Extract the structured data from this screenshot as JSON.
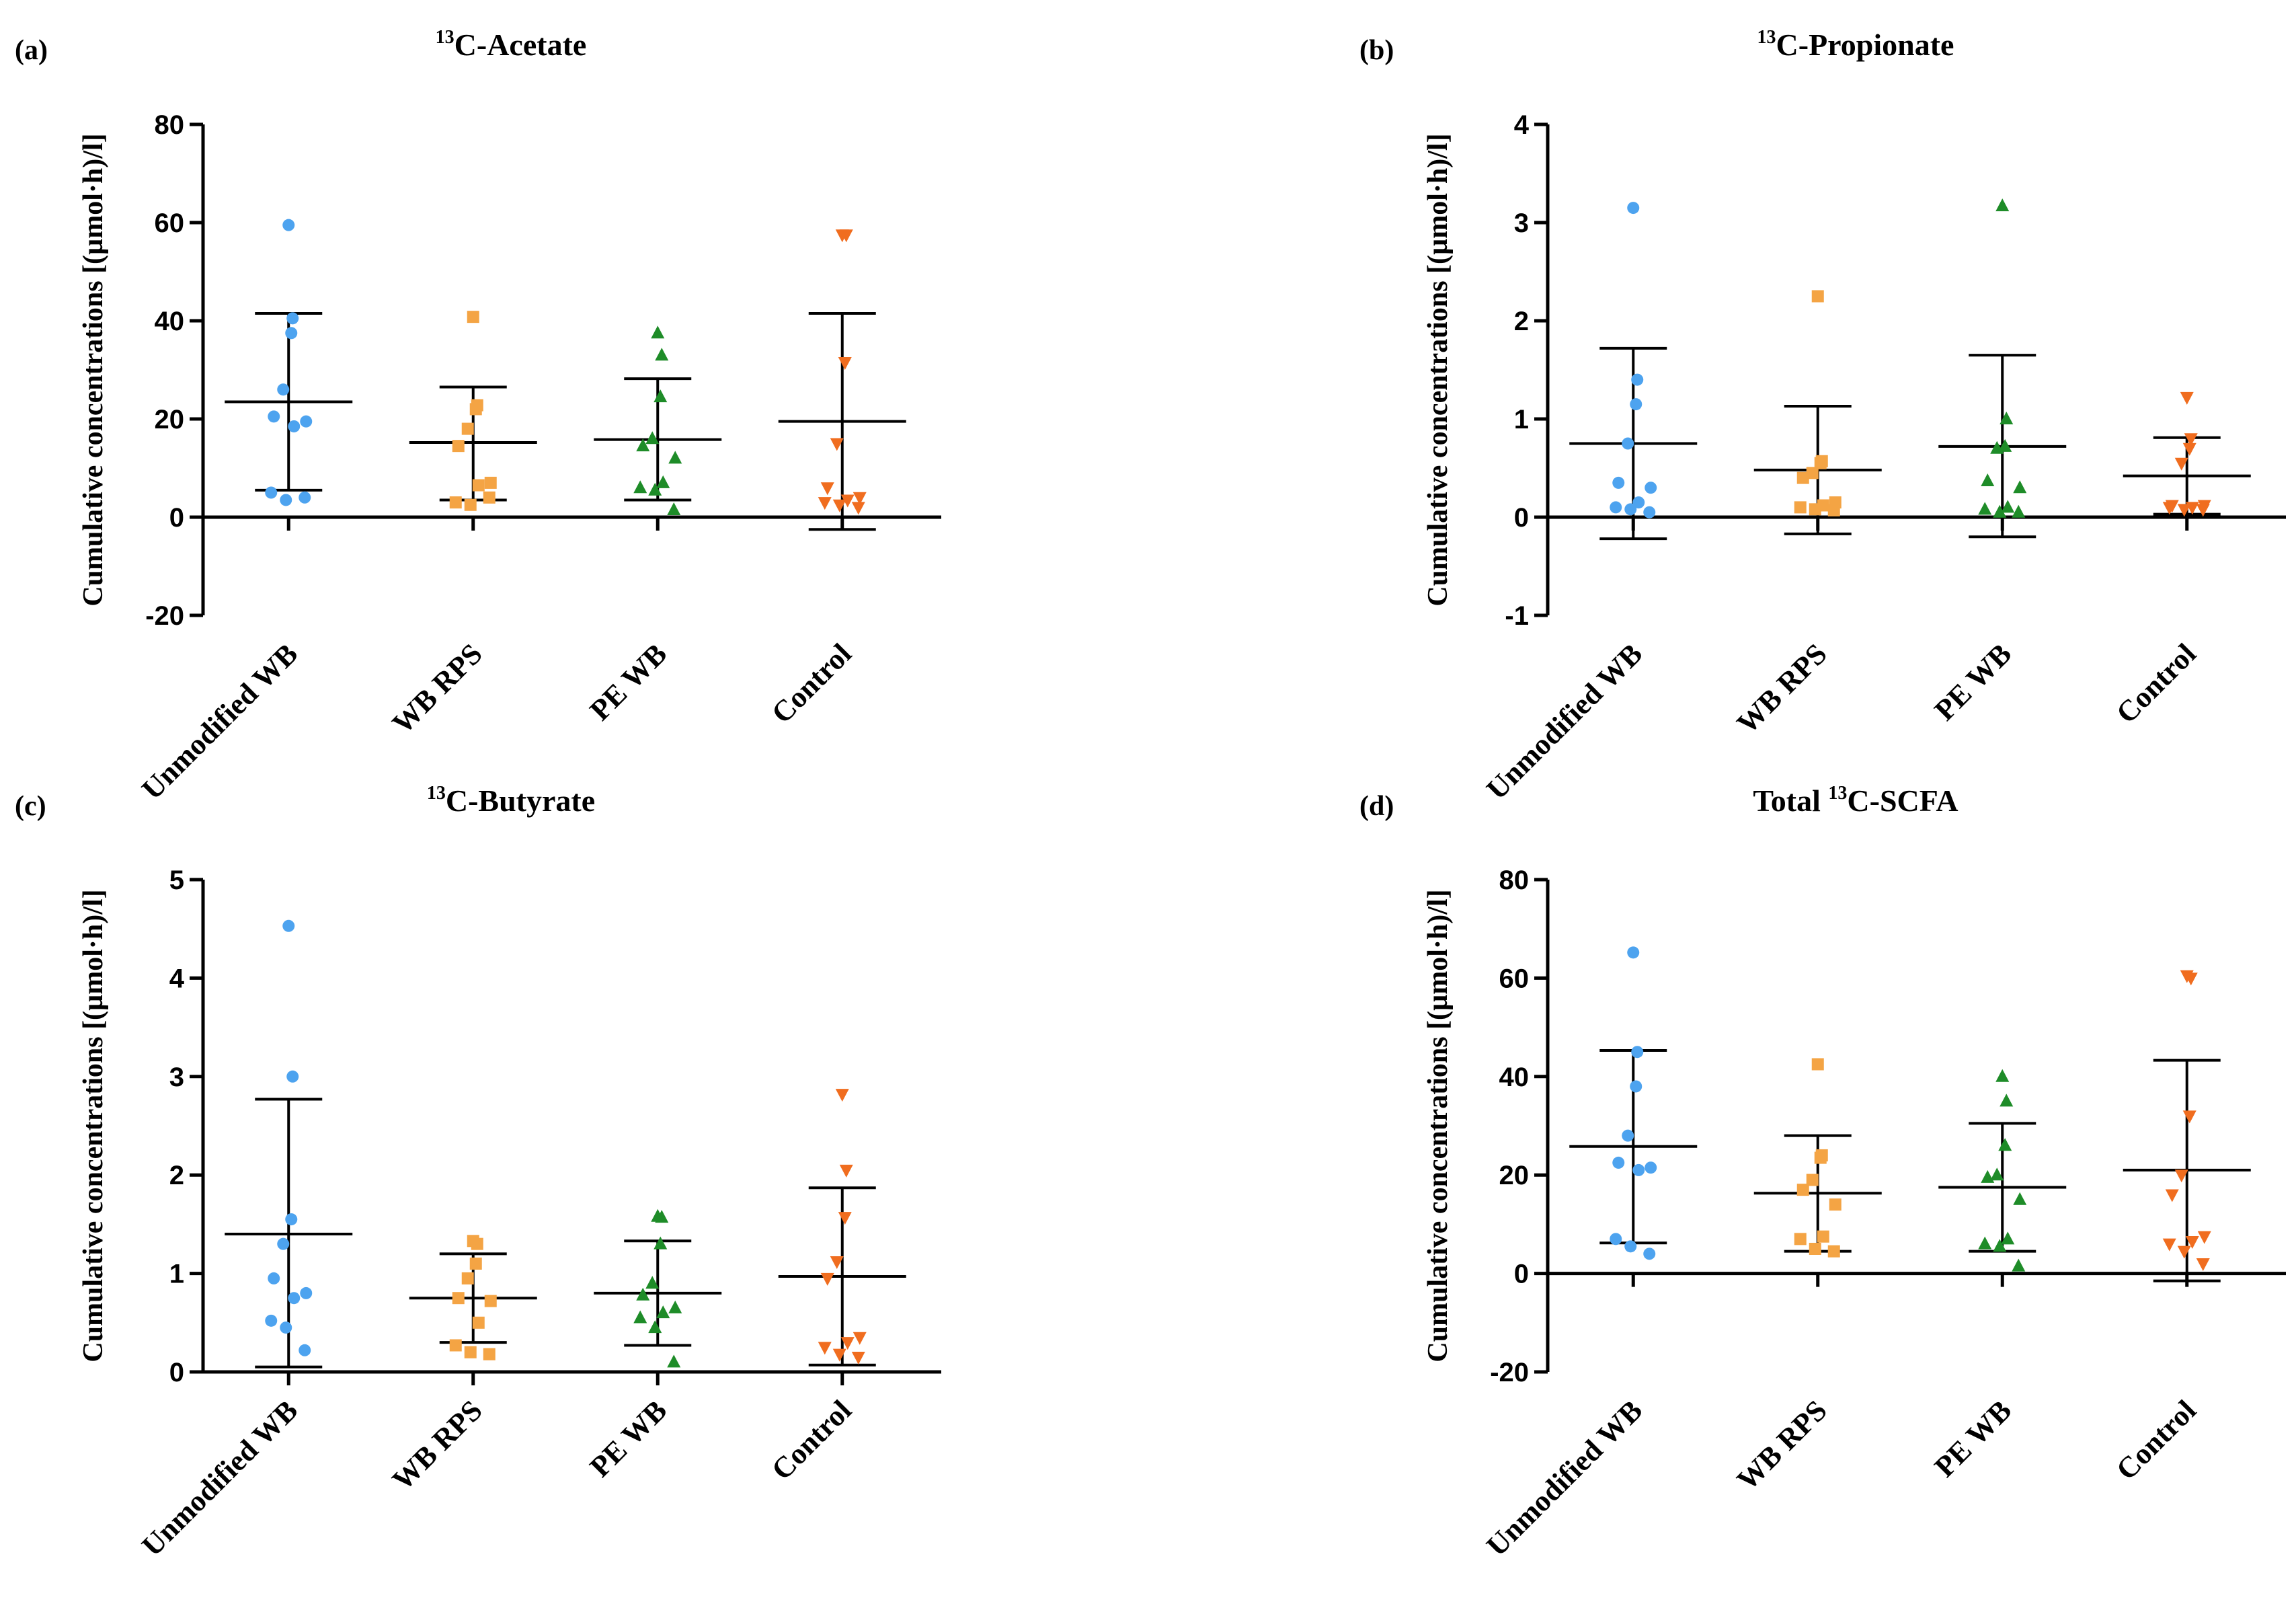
{
  "chart_data": [
    {
      "type": "scatter",
      "panel_label": "(a)",
      "title_prefix": "13",
      "title_main": "C-Acetate",
      "ylabel": "Cumulative concentrations [(µmol·h)/l]",
      "ylim": [
        -20,
        80
      ],
      "yticks": [
        -20,
        0,
        20,
        40,
        60,
        80
      ],
      "categories": [
        "Unmodified WB",
        "WB RPS",
        "PE WB",
        "Control"
      ],
      "series": [
        {
          "name": "Unmodified WB",
          "color": "#4da3ef",
          "marker": "circle",
          "values": [
            59.5,
            40.5,
            37.5,
            26,
            20.5,
            19.5,
            18.5,
            5,
            3.5,
            4
          ],
          "mean": 23.5,
          "err_low": 5.5,
          "err_high": 41.5
        },
        {
          "name": "WB RPS",
          "color": "#f4a444",
          "marker": "square",
          "values": [
            40.8,
            22.8,
            22,
            18,
            14.5,
            7,
            6.5,
            3,
            2.5,
            4
          ],
          "mean": 15.2,
          "err_low": 3.5,
          "err_high": 26.5
        },
        {
          "name": "PE WB",
          "color": "#1e8c28",
          "marker": "triangle-up",
          "values": [
            37.5,
            33,
            24.5,
            16,
            14.5,
            12,
            7,
            6,
            5.5,
            1.5
          ],
          "mean": 15.8,
          "err_low": 3.5,
          "err_high": 28.2
        },
        {
          "name": "Control",
          "color": "#f06d1f",
          "marker": "triangle-down",
          "values": [
            57.5,
            57.5,
            31.5,
            15,
            6,
            4,
            3.5,
            3,
            2.5,
            2
          ],
          "mean": 19.5,
          "err_low": -2.5,
          "err_high": 41.5
        }
      ]
    },
    {
      "type": "scatter",
      "panel_label": "(b)",
      "title_prefix": "13",
      "title_main": "C-Propionate",
      "ylabel": "Cumulative concentrations [(µmol·h)/l]",
      "ylim": [
        -1,
        4
      ],
      "yticks": [
        -1,
        0,
        1,
        2,
        3,
        4
      ],
      "categories": [
        "Unmodified WB",
        "WB RPS",
        "PE WB",
        "Control"
      ],
      "series": [
        {
          "name": "Unmodified WB",
          "color": "#4da3ef",
          "marker": "circle",
          "values": [
            3.15,
            1.4,
            1.15,
            0.75,
            0.35,
            0.3,
            0.15,
            0.1,
            0.08,
            0.05
          ],
          "mean": 0.75,
          "err_low": -0.22,
          "err_high": 1.72
        },
        {
          "name": "WB RPS",
          "color": "#f4a444",
          "marker": "square",
          "values": [
            2.25,
            0.57,
            0.55,
            0.45,
            0.4,
            0.15,
            0.12,
            0.1,
            0.08,
            0.07
          ],
          "mean": 0.48,
          "err_low": -0.17,
          "err_high": 1.13
        },
        {
          "name": "PE WB",
          "color": "#1e8c28",
          "marker": "triangle-up",
          "values": [
            3.17,
            1.0,
            0.72,
            0.7,
            0.37,
            0.3,
            0.1,
            0.08,
            0.05,
            0.05
          ],
          "mean": 0.72,
          "err_low": -0.2,
          "err_high": 1.65
        },
        {
          "name": "Control",
          "color": "#f06d1f",
          "marker": "triangle-down",
          "values": [
            1.22,
            0.8,
            0.7,
            0.55,
            0.12,
            0.12,
            0.1,
            0.1,
            0.08,
            0.08
          ],
          "mean": 0.42,
          "err_low": 0.03,
          "err_high": 0.81
        }
      ]
    },
    {
      "type": "scatter",
      "panel_label": "(c)",
      "title_prefix": "13",
      "title_main": "C-Butyrate",
      "ylabel": "Cumulative concentrations [(µmol·h)/l]",
      "ylim": [
        0,
        5
      ],
      "yticks": [
        0,
        1,
        2,
        3,
        4,
        5
      ],
      "categories": [
        "Unmodified WB",
        "WB RPS",
        "PE WB",
        "Control"
      ],
      "series": [
        {
          "name": "Unmodified WB",
          "color": "#4da3ef",
          "marker": "circle",
          "values": [
            4.53,
            3.0,
            1.55,
            1.3,
            0.95,
            0.8,
            0.75,
            0.52,
            0.45,
            0.22
          ],
          "mean": 1.4,
          "err_low": 0.05,
          "err_high": 2.77
        },
        {
          "name": "WB RPS",
          "color": "#f4a444",
          "marker": "square",
          "values": [
            1.33,
            1.3,
            1.1,
            0.95,
            0.75,
            0.72,
            0.5,
            0.27,
            0.2,
            0.18
          ],
          "mean": 0.75,
          "err_low": 0.3,
          "err_high": 1.2
        },
        {
          "name": "PE WB",
          "color": "#1e8c28",
          "marker": "triangle-up",
          "values": [
            1.58,
            1.57,
            1.3,
            0.9,
            0.78,
            0.65,
            0.6,
            0.55,
            0.45,
            0.1
          ],
          "mean": 0.8,
          "err_low": 0.27,
          "err_high": 1.33
        },
        {
          "name": "Control",
          "color": "#f06d1f",
          "marker": "triangle-down",
          "values": [
            2.82,
            2.05,
            1.57,
            1.12,
            0.95,
            0.35,
            0.3,
            0.25,
            0.18,
            0.15
          ],
          "mean": 0.97,
          "err_low": 0.07,
          "err_high": 1.87
        }
      ]
    },
    {
      "type": "scatter",
      "panel_label": "(d)",
      "title_prefix": "Total ",
      "title_sup": "13",
      "title_main": "C-SCFA",
      "ylabel": "Cumulative concentrations [(µmol·h)/l]",
      "ylim": [
        -20,
        80
      ],
      "yticks": [
        -20,
        0,
        20,
        40,
        60,
        80
      ],
      "categories": [
        "Unmodified WB",
        "WB RPS",
        "PE WB",
        "Control"
      ],
      "series": [
        {
          "name": "Unmodified WB",
          "color": "#4da3ef",
          "marker": "circle",
          "values": [
            65.2,
            45,
            38,
            28,
            22.5,
            21.5,
            21,
            7,
            5.5,
            4
          ],
          "mean": 25.8,
          "err_low": 6.2,
          "err_high": 45.3
        },
        {
          "name": "WB RPS",
          "color": "#f4a444",
          "marker": "square",
          "values": [
            42.5,
            24,
            23.5,
            19,
            17,
            14,
            7.5,
            7,
            5,
            4.5
          ],
          "mean": 16.3,
          "err_low": 4.5,
          "err_high": 28
        },
        {
          "name": "PE WB",
          "color": "#1e8c28",
          "marker": "triangle-up",
          "values": [
            40,
            35,
            26,
            20,
            19.5,
            15,
            7,
            6,
            5.5,
            1.5
          ],
          "mean": 17.5,
          "err_low": 4.5,
          "err_high": 30.5
        },
        {
          "name": "Control",
          "color": "#f06d1f",
          "marker": "triangle-down",
          "values": [
            60.5,
            60,
            32,
            20,
            16,
            7.5,
            6.5,
            6,
            4.5,
            2
          ],
          "mean": 21,
          "err_low": -1.5,
          "err_high": 43.3
        }
      ]
    }
  ]
}
